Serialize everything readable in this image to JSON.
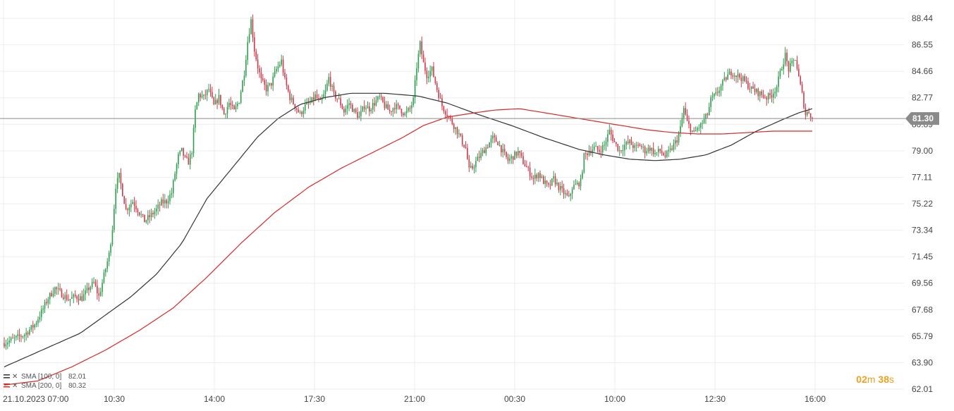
{
  "chart_data": {
    "type": "candlestick",
    "y_ticks": [
      "88.44",
      "86.55",
      "84.66",
      "82.77",
      "80.89",
      "79.00",
      "77.11",
      "75.22",
      "73.34",
      "71.45",
      "69.56",
      "67.68",
      "65.79",
      "63.90",
      "62.01"
    ],
    "x_ticks": [
      "21.10.2023  07:00",
      "10:30",
      "14:00",
      "17:30",
      "21:00",
      "00:30",
      "10:00",
      "12:30",
      "16:00"
    ],
    "ylim": [
      62.01,
      88.44
    ],
    "last_price": "81.30",
    "colors": {
      "up": "#2e9e4e",
      "down": "#d23a4a",
      "sma100": "#333333",
      "sma200": "#d62a2a",
      "badge": "#8a8a8a"
    },
    "legend": [
      {
        "name": "SMA [100, 0]",
        "value": "82.01",
        "color": "#333333"
      },
      {
        "name": "SMA [200, 0]",
        "value": "80.32",
        "color": "#d62a2a"
      }
    ],
    "timer": {
      "minutes": "02",
      "minutes_unit": "m",
      "seconds": "38",
      "seconds_unit": "s"
    },
    "price_path": [
      [
        0,
        65.3
      ],
      [
        6,
        65.6
      ],
      [
        12,
        65.9
      ],
      [
        18,
        66.6
      ],
      [
        22,
        67.5
      ],
      [
        26,
        68.5
      ],
      [
        30,
        69.2
      ],
      [
        34,
        68.8
      ],
      [
        38,
        68.4
      ],
      [
        42,
        68.6
      ],
      [
        46,
        68.5
      ],
      [
        50,
        69.2
      ],
      [
        53,
        69.6
      ],
      [
        56,
        68.6
      ],
      [
        60,
        70.6
      ],
      [
        62,
        71.6
      ],
      [
        64,
        73.5
      ],
      [
        66,
        76.5
      ],
      [
        68,
        77.2
      ],
      [
        70,
        76.0
      ],
      [
        72,
        74.8
      ],
      [
        76,
        75.4
      ],
      [
        80,
        74.6
      ],
      [
        83,
        74.0
      ],
      [
        86,
        74.3
      ],
      [
        90,
        74.8
      ],
      [
        93,
        75.3
      ],
      [
        96,
        75.4
      ],
      [
        99,
        76.0
      ],
      [
        101,
        77.4
      ],
      [
        103,
        78.6
      ],
      [
        105,
        79.0
      ],
      [
        107,
        78.4
      ],
      [
        109,
        78.2
      ],
      [
        111,
        79.0
      ],
      [
        113,
        81.8
      ],
      [
        115,
        83.0
      ],
      [
        118,
        82.8
      ],
      [
        121,
        83.4
      ],
      [
        124,
        82.2
      ],
      [
        127,
        82.8
      ],
      [
        130,
        81.6
      ],
      [
        133,
        82.4
      ],
      [
        136,
        81.8
      ],
      [
        139,
        82.6
      ],
      [
        142,
        84.6
      ],
      [
        144,
        86.8
      ],
      [
        146,
        88.3
      ],
      [
        148,
        86.2
      ],
      [
        150,
        85.0
      ],
      [
        152,
        84.0
      ],
      [
        155,
        83.4
      ],
      [
        158,
        83.8
      ],
      [
        161,
        84.8
      ],
      [
        164,
        85.4
      ],
      [
        166,
        84.0
      ],
      [
        169,
        82.8
      ],
      [
        172,
        82.2
      ],
      [
        175,
        81.6
      ],
      [
        178,
        82.2
      ],
      [
        181,
        82.4
      ],
      [
        184,
        82.9
      ],
      [
        187,
        82.4
      ],
      [
        190,
        83.2
      ],
      [
        192,
        84.2
      ],
      [
        195,
        83.0
      ],
      [
        198,
        82.6
      ],
      [
        201,
        81.8
      ],
      [
        204,
        82.4
      ],
      [
        207,
        81.8
      ],
      [
        210,
        81.4
      ],
      [
        213,
        82.2
      ],
      [
        216,
        82.0
      ],
      [
        219,
        82.4
      ],
      [
        222,
        82.8
      ],
      [
        225,
        82.2
      ],
      [
        228,
        81.8
      ],
      [
        231,
        82.2
      ],
      [
        234,
        82.0
      ],
      [
        237,
        81.6
      ],
      [
        240,
        82.0
      ],
      [
        242,
        82.6
      ],
      [
        244,
        85.0
      ],
      [
        246,
        86.6
      ],
      [
        248,
        85.2
      ],
      [
        250,
        84.4
      ],
      [
        253,
        84.8
      ],
      [
        256,
        83.4
      ],
      [
        259,
        82.2
      ],
      [
        262,
        81.6
      ],
      [
        265,
        81.0
      ],
      [
        268,
        80.4
      ],
      [
        271,
        79.6
      ],
      [
        273,
        79.2
      ],
      [
        275,
        77.6
      ],
      [
        277,
        77.8
      ],
      [
        280,
        78.4
      ],
      [
        283,
        78.9
      ],
      [
        286,
        79.4
      ],
      [
        289,
        79.9
      ],
      [
        292,
        79.6
      ],
      [
        295,
        78.9
      ],
      [
        298,
        78.3
      ],
      [
        301,
        78.6
      ],
      [
        304,
        78.9
      ],
      [
        307,
        78.2
      ],
      [
        310,
        77.6
      ],
      [
        313,
        77.0
      ],
      [
        316,
        77.4
      ],
      [
        319,
        76.8
      ],
      [
        322,
        76.4
      ],
      [
        325,
        77.0
      ],
      [
        328,
        76.4
      ],
      [
        331,
        76.0
      ],
      [
        334,
        75.6
      ],
      [
        336,
        76.4
      ],
      [
        339,
        76.6
      ],
      [
        341,
        76.8
      ],
      [
        343,
        78.6
      ],
      [
        346,
        79.0
      ],
      [
        349,
        79.2
      ],
      [
        352,
        79.0
      ],
      [
        355,
        79.4
      ],
      [
        358,
        80.4
      ],
      [
        361,
        79.6
      ],
      [
        364,
        79.0
      ],
      [
        367,
        79.4
      ],
      [
        370,
        79.6
      ],
      [
        373,
        79.2
      ],
      [
        376,
        79.4
      ],
      [
        379,
        79.0
      ],
      [
        382,
        79.2
      ],
      [
        385,
        78.8
      ],
      [
        388,
        79.0
      ],
      [
        391,
        78.6
      ],
      [
        394,
        79.0
      ],
      [
        396,
        79.4
      ],
      [
        398,
        79.8
      ],
      [
        400,
        80.6
      ],
      [
        402,
        82.0
      ],
      [
        404,
        81.0
      ],
      [
        406,
        80.6
      ],
      [
        408,
        80.2
      ],
      [
        410,
        80.6
      ],
      [
        412,
        80.8
      ],
      [
        414,
        81.2
      ],
      [
        416,
        81.6
      ],
      [
        418,
        82.6
      ],
      [
        421,
        83.0
      ],
      [
        424,
        83.6
      ],
      [
        427,
        84.2
      ],
      [
        430,
        84.6
      ],
      [
        433,
        84.4
      ],
      [
        436,
        84.2
      ],
      [
        439,
        83.8
      ],
      [
        442,
        83.4
      ],
      [
        445,
        83.2
      ],
      [
        448,
        83.0
      ],
      [
        451,
        82.8
      ],
      [
        454,
        83.0
      ],
      [
        457,
        83.6
      ],
      [
        460,
        85.0
      ],
      [
        462,
        85.8
      ],
      [
        464,
        84.8
      ],
      [
        466,
        85.2
      ],
      [
        468,
        85.6
      ],
      [
        470,
        84.2
      ],
      [
        472,
        83.0
      ],
      [
        474,
        81.6
      ],
      [
        476,
        81.8
      ],
      [
        478,
        81.3
      ]
    ],
    "sma100_path": [
      [
        0,
        63.6
      ],
      [
        15,
        64.4
      ],
      [
        30,
        65.2
      ],
      [
        45,
        66.0
      ],
      [
        60,
        67.3
      ],
      [
        75,
        68.6
      ],
      [
        90,
        70.2
      ],
      [
        105,
        72.4
      ],
      [
        120,
        75.6
      ],
      [
        135,
        77.8
      ],
      [
        150,
        80.0
      ],
      [
        162,
        81.3
      ],
      [
        175,
        82.3
      ],
      [
        190,
        82.8
      ],
      [
        205,
        83.1
      ],
      [
        225,
        83.1
      ],
      [
        245,
        82.9
      ],
      [
        262,
        82.4
      ],
      [
        280,
        81.6
      ],
      [
        300,
        80.8
      ],
      [
        320,
        79.9
      ],
      [
        340,
        79.1
      ],
      [
        355,
        78.7
      ],
      [
        370,
        78.4
      ],
      [
        385,
        78.3
      ],
      [
        400,
        78.4
      ],
      [
        415,
        78.7
      ],
      [
        430,
        79.4
      ],
      [
        445,
        80.4
      ],
      [
        460,
        81.2
      ],
      [
        470,
        81.7
      ],
      [
        478,
        82.0
      ]
    ],
    "sma200_path": [
      [
        0,
        62.3
      ],
      [
        20,
        62.6
      ],
      [
        40,
        63.6
      ],
      [
        60,
        64.8
      ],
      [
        80,
        66.2
      ],
      [
        100,
        67.8
      ],
      [
        120,
        70.0
      ],
      [
        140,
        72.4
      ],
      [
        160,
        74.6
      ],
      [
        180,
        76.4
      ],
      [
        200,
        77.8
      ],
      [
        220,
        79.0
      ],
      [
        235,
        79.9
      ],
      [
        248,
        80.8
      ],
      [
        262,
        81.4
      ],
      [
        278,
        81.7
      ],
      [
        290,
        81.9
      ],
      [
        305,
        82.0
      ],
      [
        320,
        81.7
      ],
      [
        340,
        81.3
      ],
      [
        360,
        80.9
      ],
      [
        380,
        80.5
      ],
      [
        395,
        80.3
      ],
      [
        410,
        80.2
      ],
      [
        425,
        80.2
      ],
      [
        440,
        80.3
      ],
      [
        455,
        80.4
      ],
      [
        470,
        80.4
      ],
      [
        478,
        80.4
      ]
    ]
  }
}
